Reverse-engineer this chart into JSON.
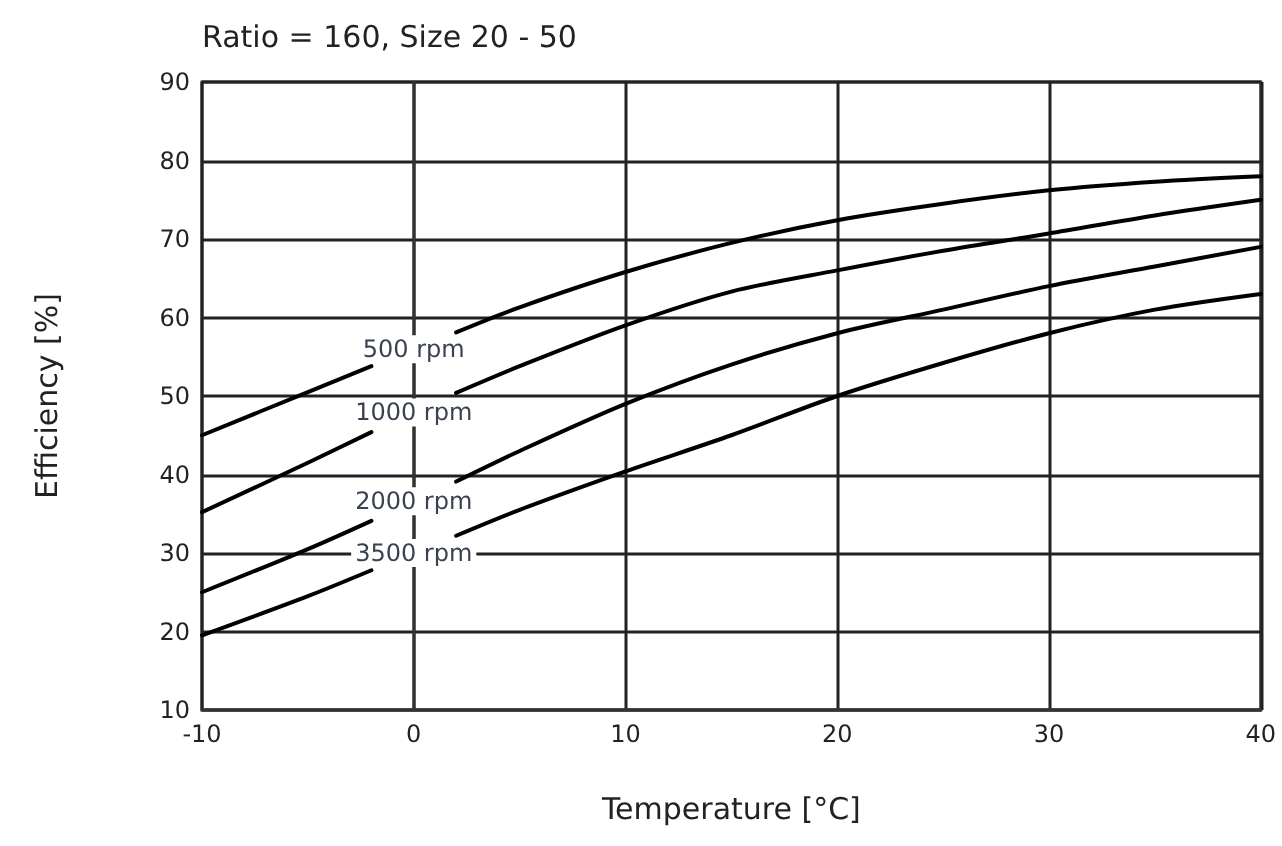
{
  "chart_data": {
    "type": "line",
    "title": "Ratio = 160, Size 20 - 50",
    "xlabel": "Temperature [°C]",
    "ylabel": "Efficiency [%]",
    "x": [
      -10,
      -5,
      -2,
      0,
      2,
      5,
      10,
      15,
      20,
      25,
      30,
      35,
      40
    ],
    "series": [
      {
        "name": "500 rpm",
        "color": "#000000",
        "values": [
          45,
          50.5,
          53.8,
          null,
          58.1,
          61.3,
          65.8,
          69.5,
          72.4,
          74.5,
          76.2,
          77.3,
          78
        ]
      },
      {
        "name": "1000 rpm",
        "color": "#000000",
        "values": [
          35.2,
          41.5,
          45.4,
          null,
          50.4,
          53.8,
          59,
          63.3,
          66,
          68.5,
          70.7,
          73,
          75
        ]
      },
      {
        "name": "2000 rpm",
        "color": "#000000",
        "values": [
          25,
          30.5,
          34.1,
          null,
          39.1,
          43,
          49,
          54,
          58,
          61,
          64,
          66.5,
          69
        ]
      },
      {
        "name": "3500 rpm",
        "color": "#000000",
        "values": [
          19.5,
          24.5,
          27.8,
          null,
          32.2,
          35.5,
          40.4,
          45,
          50,
          54.2,
          58,
          61,
          63
        ]
      }
    ],
    "xlim": [
      -10,
      40
    ],
    "xticks": [
      -10,
      0,
      10,
      20,
      30,
      40
    ],
    "ylim": [
      10,
      90
    ],
    "yticks": [
      10,
      20,
      30,
      40,
      50,
      60,
      70,
      80,
      90
    ],
    "grid": true,
    "marker": "none",
    "line_style": "solid"
  }
}
